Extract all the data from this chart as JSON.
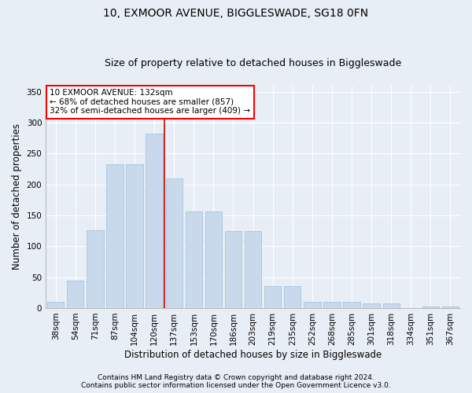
{
  "title1": "10, EXMOOR AVENUE, BIGGLESWADE, SG18 0FN",
  "title2": "Size of property relative to detached houses in Biggleswade",
  "xlabel": "Distribution of detached houses by size in Biggleswade",
  "ylabel": "Number of detached properties",
  "categories": [
    "38sqm",
    "54sqm",
    "71sqm",
    "87sqm",
    "104sqm",
    "120sqm",
    "137sqm",
    "153sqm",
    "170sqm",
    "186sqm",
    "203sqm",
    "219sqm",
    "235sqm",
    "252sqm",
    "268sqm",
    "285sqm",
    "301sqm",
    "318sqm",
    "334sqm",
    "351sqm",
    "367sqm"
  ],
  "values": [
    10,
    45,
    126,
    233,
    233,
    283,
    210,
    156,
    157,
    125,
    125,
    35,
    35,
    10,
    10,
    10,
    8,
    8,
    0,
    3,
    2
  ],
  "bar_color": "#c9d9ec",
  "bar_edge_color": "#a8c4de",
  "annotation_text_line1": "10 EXMOOR AVENUE: 132sqm",
  "annotation_text_line2": "← 68% of detached houses are smaller (857)",
  "annotation_text_line3": "32% of semi-detached houses are larger (409) →",
  "vline_color": "#cc0000",
  "vline_x": 5.5,
  "footnote1": "Contains HM Land Registry data © Crown copyright and database right 2024.",
  "footnote2": "Contains public sector information licensed under the Open Government Licence v3.0.",
  "ylim": [
    0,
    360
  ],
  "yticks": [
    0,
    50,
    100,
    150,
    200,
    250,
    300,
    350
  ],
  "bg_color": "#e8eef5",
  "plot_bg_color": "#e8eef5",
  "grid_color": "#ffffff",
  "title1_fontsize": 10,
  "title2_fontsize": 9,
  "tick_fontsize": 7.5,
  "label_fontsize": 8.5,
  "footnote_fontsize": 6.5,
  "ann_fontsize": 7.5
}
